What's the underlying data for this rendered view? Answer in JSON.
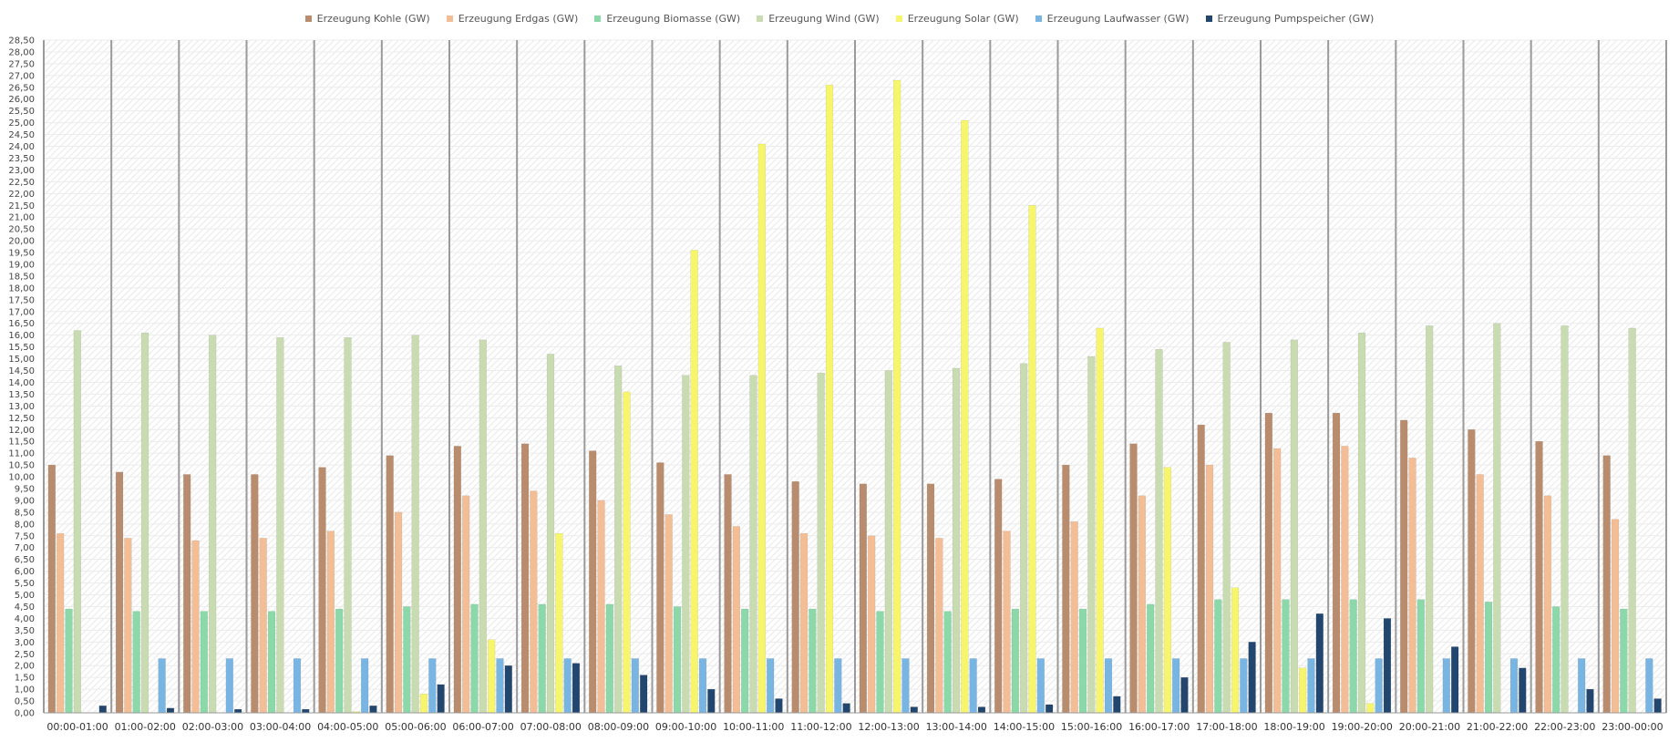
{
  "chart_data": {
    "type": "bar",
    "categories": [
      "00:00-01:00",
      "01:00-02:00",
      "02:00-03:00",
      "03:00-04:00",
      "04:00-05:00",
      "05:00-06:00",
      "06:00-07:00",
      "07:00-08:00",
      "08:00-09:00",
      "09:00-10:00",
      "10:00-11:00",
      "11:00-12:00",
      "12:00-13:00",
      "13:00-14:00",
      "14:00-15:00",
      "15:00-16:00",
      "16:00-17:00",
      "17:00-18:00",
      "18:00-19:00",
      "19:00-20:00",
      "20:00-21:00",
      "21:00-22:00",
      "22:00-23:00",
      "23:00-00:00"
    ],
    "series": [
      {
        "name": "Erzeugung Kohle (GW)",
        "color": "#b98c6e",
        "values": [
          10.5,
          10.2,
          10.1,
          10.1,
          10.4,
          10.9,
          11.3,
          11.4,
          11.1,
          10.6,
          10.1,
          9.8,
          9.7,
          9.7,
          9.9,
          10.5,
          11.4,
          12.2,
          12.7,
          12.7,
          12.4,
          12.0,
          11.5,
          10.9
        ]
      },
      {
        "name": "Erzeugung Erdgas (GW)",
        "color": "#f3bd96",
        "values": [
          7.6,
          7.4,
          7.3,
          7.4,
          7.7,
          8.5,
          9.2,
          9.4,
          9.0,
          8.4,
          7.9,
          7.6,
          7.5,
          7.4,
          7.7,
          8.1,
          9.2,
          10.5,
          11.2,
          11.3,
          10.8,
          10.1,
          9.2,
          8.2
        ]
      },
      {
        "name": "Erzeugung Biomasse (GW)",
        "color": "#8bd8a8",
        "values": [
          4.4,
          4.3,
          4.3,
          4.3,
          4.4,
          4.5,
          4.6,
          4.6,
          4.6,
          4.5,
          4.4,
          4.4,
          4.3,
          4.3,
          4.4,
          4.4,
          4.6,
          4.8,
          4.8,
          4.8,
          4.8,
          4.7,
          4.5,
          4.4
        ]
      },
      {
        "name": "Erzeugung Wind (GW)",
        "color": "#c9dbb0",
        "values": [
          16.2,
          16.1,
          16.0,
          15.9,
          15.9,
          16.0,
          15.8,
          15.2,
          14.7,
          14.3,
          14.3,
          14.4,
          14.5,
          14.6,
          14.8,
          15.1,
          15.4,
          15.7,
          15.8,
          16.1,
          16.4,
          16.5,
          16.4,
          16.3
        ]
      },
      {
        "name": "Erzeugung Solar (GW)",
        "color": "#f6f56b",
        "values": [
          0,
          0,
          0,
          0,
          0.05,
          0.8,
          3.1,
          7.6,
          13.6,
          19.6,
          24.1,
          26.6,
          26.8,
          25.1,
          21.5,
          16.3,
          10.4,
          5.3,
          1.9,
          0.4,
          0,
          0,
          0,
          0
        ]
      },
      {
        "name": "Erzeugung Laufwasser (GW)",
        "color": "#79b5e2",
        "values": [
          0,
          2.3,
          2.3,
          2.3,
          2.3,
          2.3,
          2.3,
          2.3,
          2.3,
          2.3,
          2.3,
          2.3,
          2.3,
          2.3,
          2.3,
          2.3,
          2.3,
          2.3,
          2.3,
          2.3,
          2.3,
          2.3,
          2.3,
          2.3
        ]
      },
      {
        "name": "Erzeugung Pumpspeicher (GW)",
        "color": "#23466e",
        "values": [
          0.3,
          0.2,
          0.15,
          0.15,
          0.3,
          1.2,
          2.0,
          2.1,
          1.6,
          1.0,
          0.6,
          0.4,
          0.25,
          0.25,
          0.35,
          0.7,
          1.5,
          3.0,
          4.2,
          4.0,
          2.8,
          1.9,
          1.0,
          0.6
        ]
      }
    ],
    "y_ticks": [
      "0,00",
      "0,50",
      "1,00",
      "1,50",
      "2,00",
      "2,50",
      "3,00",
      "3,50",
      "4,00",
      "4,50",
      "5,00",
      "5,50",
      "6,00",
      "6,50",
      "7,00",
      "7,50",
      "8,00",
      "8,50",
      "9,00",
      "9,50",
      "10,00",
      "10,50",
      "11,00",
      "11,50",
      "12,00",
      "12,50",
      "13,00",
      "13,50",
      "14,00",
      "14,50",
      "15,00",
      "15,50",
      "16,00",
      "16,50",
      "17,00",
      "17,50",
      "18,00",
      "18,50",
      "19,00",
      "19,50",
      "20,00",
      "20,50",
      "21,00",
      "21,50",
      "22,00",
      "22,50",
      "23,00",
      "23,50",
      "24,00",
      "24,50",
      "25,00",
      "25,50",
      "26,00",
      "26,50",
      "27,00",
      "27,50",
      "28,00",
      "28,50"
    ],
    "ylim": [
      0,
      28.5
    ],
    "grid": true,
    "legend_position": "top-center",
    "title": "",
    "xlabel": "",
    "ylabel": ""
  }
}
